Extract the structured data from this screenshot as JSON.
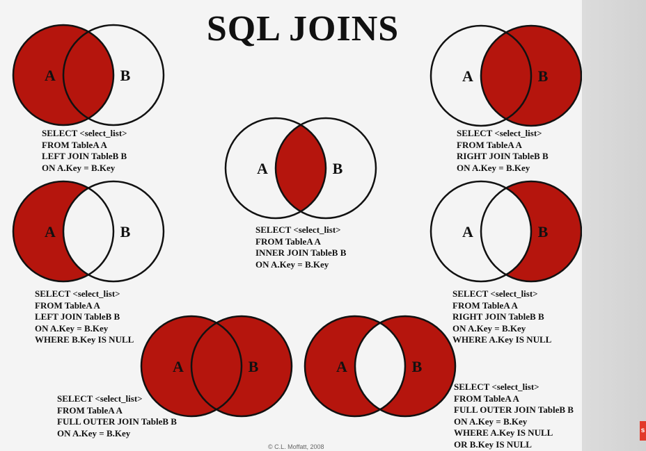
{
  "title": "SQL JOINS",
  "colors": {
    "fill": "#b5150d",
    "stroke": "#111111",
    "background": "#f4f4f4"
  },
  "labels": {
    "a": "A",
    "b": "B"
  },
  "copyright": "© C.L. Moffatt, 2008",
  "diagrams": [
    {
      "id": "left-join",
      "fill": "left",
      "sql": [
        "SELECT <select_list>",
        "FROM TableA A",
        "LEFT JOIN TableB B",
        "ON A.Key = B.Key"
      ]
    },
    {
      "id": "inner-join",
      "fill": "intersection",
      "sql": [
        "SELECT <select_list>",
        "FROM TableA A",
        "INNER JOIN TableB B",
        "ON A.Key = B.Key"
      ]
    },
    {
      "id": "right-join",
      "fill": "right",
      "sql": [
        "SELECT <select_list>",
        "FROM TableA A",
        "RIGHT JOIN TableB B",
        "ON A.Key = B.Key"
      ]
    },
    {
      "id": "left-anti-join",
      "fill": "left-only",
      "sql": [
        "SELECT <select_list>",
        "FROM TableA A",
        "LEFT JOIN TableB B",
        "ON A.Key = B.Key",
        "WHERE B.Key IS NULL"
      ]
    },
    {
      "id": "right-anti-join",
      "fill": "right-only",
      "sql": [
        "SELECT <select_list>",
        "FROM TableA A",
        "RIGHT JOIN TableB B",
        "ON A.Key = B.Key",
        "WHERE A.Key IS NULL"
      ]
    },
    {
      "id": "full-outer-join",
      "fill": "both",
      "sql": [
        "SELECT <select_list>",
        "FROM TableA A",
        "FULL OUTER JOIN TableB B",
        "ON A.Key = B.Key"
      ]
    },
    {
      "id": "full-outer-anti-join",
      "fill": "xor",
      "sql": [
        "SELECT <select_list>",
        "FROM TableA A",
        "FULL OUTER JOIN TableB B",
        "ON A.Key = B.Key",
        "WHERE A.Key IS NULL",
        "OR B.Key IS NULL"
      ]
    }
  ]
}
